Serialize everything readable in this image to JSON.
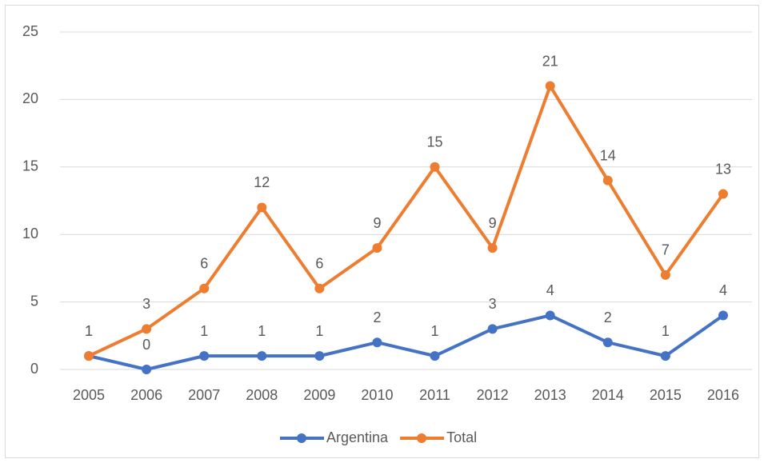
{
  "chart_data": {
    "type": "line",
    "categories": [
      "2005",
      "2006",
      "2007",
      "2008",
      "2009",
      "2010",
      "2011",
      "2012",
      "2013",
      "2014",
      "2015",
      "2016"
    ],
    "series": [
      {
        "name": "Argentina",
        "color": "#4472c4",
        "values": [
          1,
          0,
          1,
          1,
          1,
          2,
          1,
          3,
          4,
          2,
          1,
          4
        ]
      },
      {
        "name": "Total",
        "color": "#ed7d31",
        "values": [
          1,
          3,
          6,
          12,
          6,
          9,
          15,
          9,
          21,
          14,
          7,
          13
        ]
      }
    ],
    "ylim": [
      0,
      25
    ],
    "yticks": [
      0,
      5,
      10,
      15,
      20,
      25
    ],
    "grid": true,
    "legend": "bottom"
  }
}
